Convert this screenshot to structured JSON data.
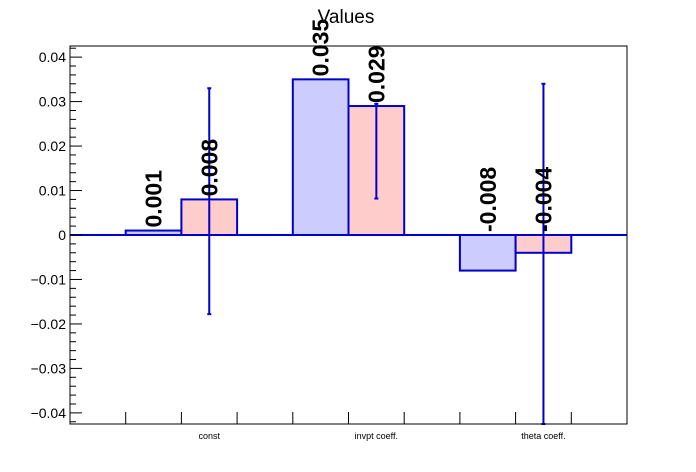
{
  "chart_data": {
    "type": "bar",
    "title": "Values",
    "categories": [
      "const",
      "invpt coeff.",
      "theta coeff."
    ],
    "ylim": [
      -0.0425,
      0.0425
    ],
    "y_ticks": [
      -0.04,
      -0.03,
      -0.02,
      -0.01,
      0,
      0.01,
      0.02,
      0.03,
      0.04
    ],
    "y_tick_labels": [
      "−0.04",
      "−0.03",
      "−0.02",
      "−0.01",
      "0",
      "0.01",
      "0.02",
      "0.03",
      "0.04"
    ],
    "grid": false,
    "legend": "none",
    "series": [
      {
        "values": [
          0.001,
          0.035,
          -0.008
        ],
        "value_labels": [
          "0.001",
          "0.035",
          "-0.008"
        ],
        "fill": "#ccccff",
        "stroke": "#0000cc"
      },
      {
        "values": [
          0.008,
          0.029,
          -0.004
        ],
        "value_labels": [
          "0.008",
          "0.029",
          "-0.004"
        ],
        "error_low": [
          -0.0178,
          0.0082,
          -0.0425
        ],
        "error_high": [
          0.033,
          0.0295,
          0.034
        ],
        "fill": "#ffcccc",
        "stroke": "#0000cc",
        "error_color": "#0000cc"
      }
    ]
  }
}
